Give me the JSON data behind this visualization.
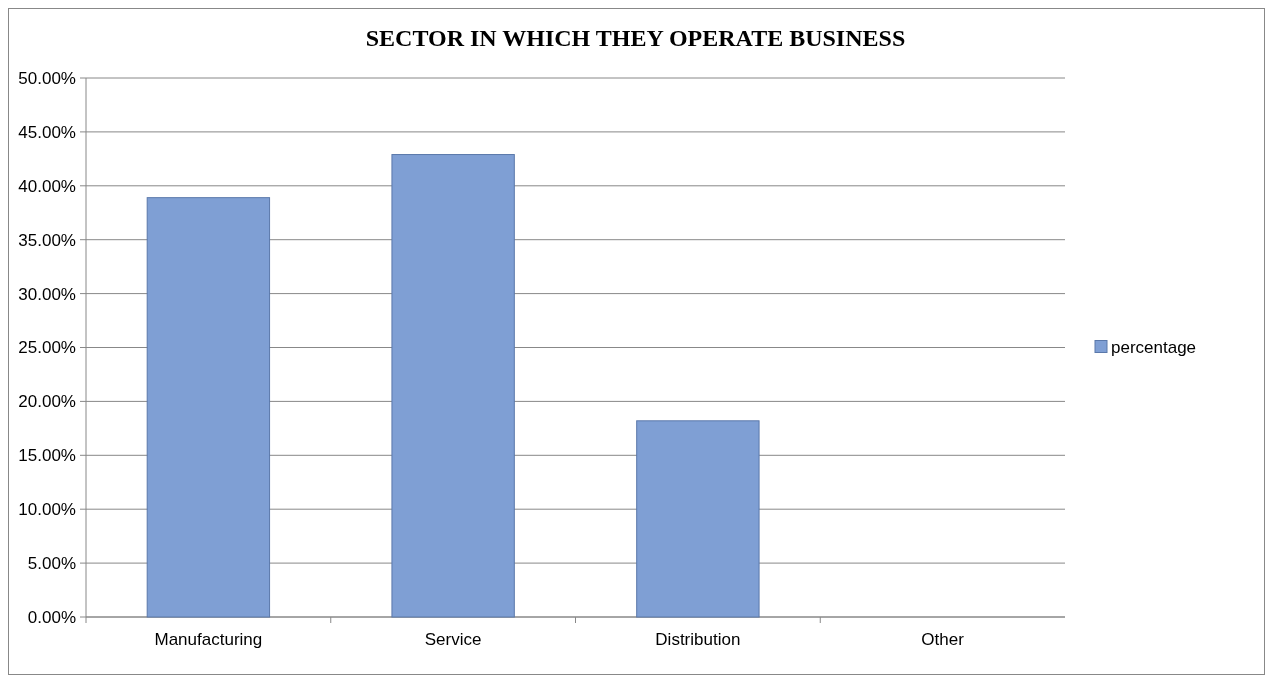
{
  "chart_data": {
    "type": "bar",
    "title": "SECTOR IN WHICH THEY OPERATE BUSINESS",
    "categories": [
      "Manufacturing",
      "Service",
      "Distribution",
      "Other"
    ],
    "series": [
      {
        "name": "percentage",
        "color": "#7f9fd4",
        "values": [
          38.9,
          42.9,
          18.2,
          0
        ]
      }
    ],
    "ylim": [
      0,
      50
    ],
    "yticks": [
      {
        "value": 0,
        "label": "0.00%"
      },
      {
        "value": 5,
        "label": "5.00%"
      },
      {
        "value": 10,
        "label": "10.00%"
      },
      {
        "value": 15,
        "label": "15.00%"
      },
      {
        "value": 20,
        "label": "20.00%"
      },
      {
        "value": 25,
        "label": "25.00%"
      },
      {
        "value": 30,
        "label": "30.00%"
      },
      {
        "value": 35,
        "label": "35.00%"
      },
      {
        "value": 40,
        "label": "40.00%"
      },
      {
        "value": 45,
        "label": "45.00%"
      },
      {
        "value": 50,
        "label": "50.00%"
      }
    ],
    "grid": "y",
    "legend": "right"
  }
}
